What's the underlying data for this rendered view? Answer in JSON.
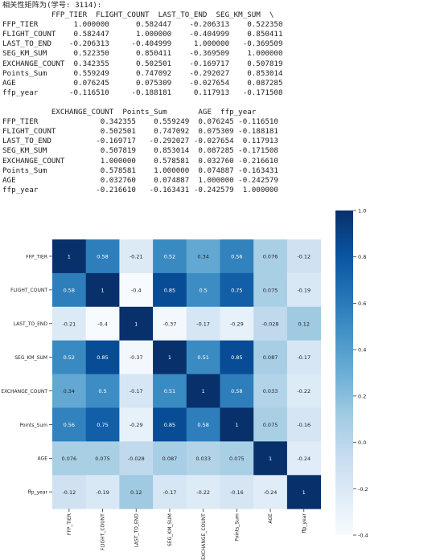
{
  "output": {
    "heading": "相关性矩阵为(学号: 3114):",
    "block1_header": "           FFP_TIER  FLIGHT_COUNT  LAST_TO_END  SEG_KM_SUM  \\",
    "block1_rows": [
      "FFP_TIER        1.000000      0.582447    -0.206313    0.522350",
      "FLIGHT_COUNT    0.582447      1.000000    -0.404999    0.850411",
      "LAST_TO_END    -0.206313     -0.404999     1.000000   -0.369509",
      "SEG_KM_SUM      0.522350      0.850411    -0.369509    1.000000",
      "EXCHANGE_COUNT  0.342355      0.502501    -0.169717    0.507819",
      "Points_Sum      0.559249      0.747092    -0.292027    0.853014",
      "AGE             0.076245      0.075309    -0.027654    0.087285",
      "ffp_year       -0.116510     -0.188181     0.117913   -0.171508"
    ],
    "block2_header": "           EXCHANGE_COUNT  Points_Sum       AGE  ffp_year",
    "block2_rows": [
      "FFP_TIER              0.342355    0.559249  0.076245 -0.116510",
      "FLIGHT_COUNT          0.502501    0.747092  0.075309 -0.188181",
      "LAST_TO_END          -0.169717   -0.292027 -0.027654  0.117913",
      "SEG_KM_SUM            0.507819    0.853014  0.087285 -0.171508",
      "EXCHANGE_COUNT        1.000000    0.578581  0.032760 -0.216610",
      "Points_Sum            0.578581    1.000000  0.074887 -0.163431",
      "AGE                   0.032760    0.074887  1.000000 -0.242579",
      "ffp_year             -0.216610   -0.163431 -0.242579  1.000000"
    ]
  },
  "chart_data": {
    "type": "heatmap",
    "title": "",
    "xlabel": "",
    "ylabel": "",
    "labels": [
      "FFP_TIER",
      "FLIGHT_COUNT",
      "LAST_TO_END",
      "SEG_KM_SUM",
      "EXCHANGE_COUNT",
      "Points_Sum",
      "AGE",
      "ffp_year"
    ],
    "matrix": [
      [
        1,
        0.58,
        -0.21,
        0.52,
        0.34,
        0.56,
        0.076,
        -0.12
      ],
      [
        0.58,
        1,
        -0.4,
        0.85,
        0.5,
        0.75,
        0.075,
        -0.19
      ],
      [
        -0.21,
        -0.4,
        1,
        -0.37,
        -0.17,
        -0.29,
        -0.028,
        0.12
      ],
      [
        0.52,
        0.85,
        -0.37,
        1,
        0.51,
        0.85,
        0.087,
        -0.17
      ],
      [
        0.34,
        0.5,
        -0.17,
        0.51,
        1,
        0.58,
        0.033,
        -0.22
      ],
      [
        0.56,
        0.75,
        -0.29,
        0.85,
        0.58,
        1,
        0.075,
        -0.16
      ],
      [
        0.076,
        0.075,
        -0.028,
        0.087,
        0.033,
        0.075,
        1,
        -0.24
      ],
      [
        -0.12,
        -0.19,
        0.12,
        -0.17,
        -0.22,
        -0.16,
        -0.24,
        1
      ]
    ],
    "cell_labels": [
      [
        "1",
        "0.58",
        "-0.21",
        "0.52",
        "0.34",
        "0.56",
        "0.076",
        "-0.12"
      ],
      [
        "0.58",
        "1",
        "-0.4",
        "0.85",
        "0.5",
        "0.75",
        "0.075",
        "-0.19"
      ],
      [
        "-0.21",
        "-0.4",
        "1",
        "-0.37",
        "-0.17",
        "-0.29",
        "-0.028",
        "0.12"
      ],
      [
        "0.52",
        "0.85",
        "-0.37",
        "1",
        "0.51",
        "0.85",
        "0.087",
        "-0.17"
      ],
      [
        "0.34",
        "0.5",
        "-0.17",
        "0.51",
        "1",
        "0.58",
        "0.033",
        "-0.22"
      ],
      [
        "0.56",
        "0.75",
        "-0.29",
        "0.85",
        "0.58",
        "1",
        "0.075",
        "-0.16"
      ],
      [
        "0.076",
        "0.075",
        "-0.028",
        "0.087",
        "0.033",
        "0.075",
        "1",
        "-0.24"
      ],
      [
        "-0.12",
        "-0.19",
        "0.12",
        "-0.17",
        "-0.22",
        "-0.16",
        "-0.24",
        "1"
      ]
    ],
    "colorbar": {
      "range": [
        -0.4,
        1.0
      ],
      "ticks": [
        1.0,
        0.8,
        0.6,
        0.4,
        0.2,
        0.0,
        -0.2,
        -0.4
      ],
      "tick_labels": [
        "1.0",
        "0.8",
        "0.6",
        "0.4",
        "0.2",
        "0.0",
        "-0.2",
        "-0.4"
      ]
    },
    "colormap": "Blues",
    "colormap_stops": [
      "#f7fbff",
      "#deebf7",
      "#c6dbef",
      "#9ecae1",
      "#6baed6",
      "#4292c6",
      "#2171b5",
      "#08519c",
      "#08306b"
    ]
  }
}
